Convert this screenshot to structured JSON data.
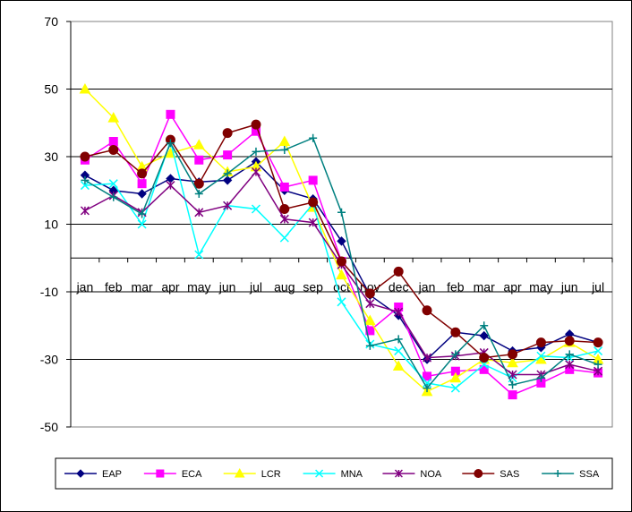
{
  "chart_data": {
    "type": "line",
    "title": "",
    "xlabel": "",
    "ylabel": "",
    "ylim": [
      -50,
      70
    ],
    "yticks": [
      70,
      50,
      30,
      10,
      -10,
      -30,
      -50
    ],
    "grid": true,
    "legend_position": "bottom",
    "categories": [
      "jan",
      "feb",
      "mar",
      "apr",
      "may",
      "jun",
      "jul",
      "aug",
      "sep",
      "oct",
      "nov",
      "dec",
      "jan",
      "feb",
      "mar",
      "apr",
      "may",
      "jun",
      "jul"
    ],
    "series": [
      {
        "name": "EAP",
        "color": "#000080",
        "marker": "diamond",
        "values": [
          24.5,
          20,
          19,
          23.5,
          22.5,
          23,
          28.5,
          20,
          17.5,
          5,
          -11,
          -17,
          -30,
          -22,
          -23,
          -27.5,
          -26.5,
          -22.5,
          -25
        ]
      },
      {
        "name": "ECA",
        "color": "#FF00FF",
        "marker": "square",
        "values": [
          29,
          34.5,
          22,
          42.5,
          29,
          30.5,
          37.5,
          21,
          23,
          -1,
          -21.5,
          -14.5,
          -35,
          -33.5,
          -33,
          -40.5,
          -37,
          -33,
          -34
        ]
      },
      {
        "name": "LCR",
        "color": "#FFFF00",
        "marker": "triangle",
        "values": [
          50,
          41.5,
          27,
          31,
          33.5,
          25.5,
          27,
          34.5,
          15,
          -5,
          -18.5,
          -32,
          -39.5,
          -35.5,
          -30,
          -31,
          -30,
          -25,
          -30
        ]
      },
      {
        "name": "MNA",
        "color": "#00FFFF",
        "marker": "x",
        "values": [
          21.5,
          22,
          10,
          34.5,
          1,
          15.5,
          14.5,
          6,
          16,
          -13,
          -25.5,
          -27.5,
          -37,
          -38.5,
          -31.5,
          -35.5,
          -29,
          -29.5,
          -27.5
        ]
      },
      {
        "name": "NOA",
        "color": "#800080",
        "marker": "star",
        "values": [
          14,
          18.5,
          13.5,
          21.5,
          13.5,
          15.5,
          25.5,
          11.5,
          10.5,
          -2,
          -13.5,
          -16,
          -29.5,
          -29,
          -28,
          -34.5,
          -34.5,
          -31.5,
          -33.5
        ]
      },
      {
        "name": "SAS",
        "color": "#800000",
        "marker": "circle",
        "values": [
          30,
          32,
          25,
          35,
          22,
          37,
          39.5,
          14.5,
          16.5,
          -1,
          -10.5,
          -4,
          -15.5,
          -22,
          -29.5,
          -28.5,
          -25,
          -24.5,
          -25
        ]
      },
      {
        "name": "SSA",
        "color": "#008080",
        "marker": "plus",
        "values": [
          23,
          18,
          13,
          34,
          19,
          25,
          31.5,
          32,
          35.5,
          13.5,
          -26,
          -24,
          -38.5,
          -28.5,
          -20,
          -37.5,
          -35.5,
          -28.5,
          -31.5
        ]
      }
    ]
  }
}
